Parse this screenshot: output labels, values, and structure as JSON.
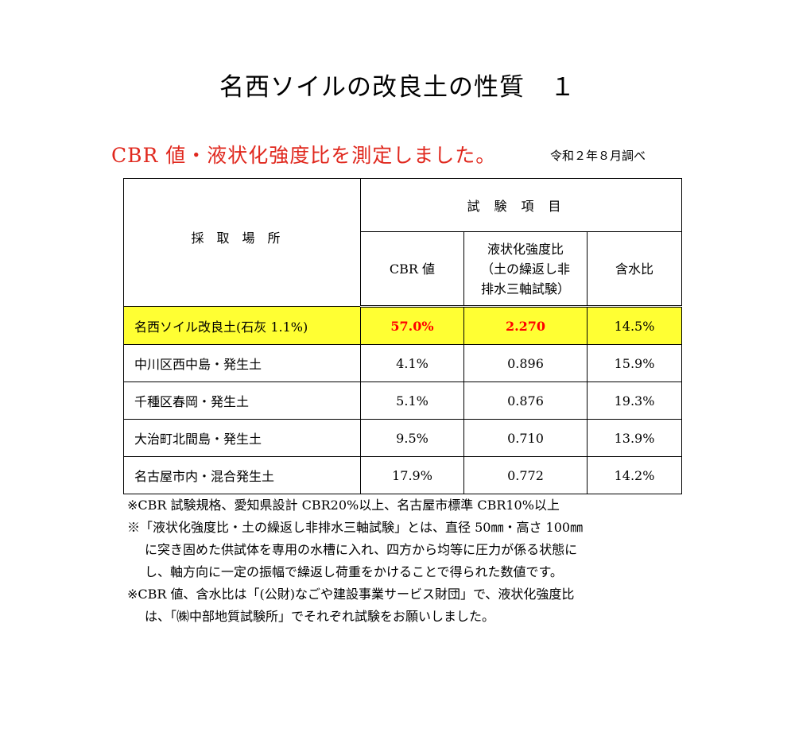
{
  "title": "名西ソイルの改良土の性質　１",
  "subtitle": "CBR 値・液状化強度比を測定しました。",
  "date": "令和２年８月調べ",
  "table": {
    "location_header": "採取場所",
    "group_header": "試験項目",
    "col_cbr": "CBR 値",
    "col_liq_1": "液状化強度比",
    "col_liq_2": "（土の繰返し非",
    "col_liq_3": "排水三軸試験）",
    "col_water": "含水比",
    "rows": [
      {
        "location": "名西ソイル改良土(石灰 1.1%)",
        "cbr": "57.0%",
        "liq": "2.270",
        "water": "14.5%"
      },
      {
        "location": "中川区西中島・発生土",
        "cbr": "4.1%",
        "liq": "0.896",
        "water": "15.9%"
      },
      {
        "location": "千種区春岡・発生土",
        "cbr": "5.1%",
        "liq": "0.876",
        "water": "19.3%"
      },
      {
        "location": "大治町北間島・発生土",
        "cbr": "9.5%",
        "liq": "0.710",
        "water": "13.9%"
      },
      {
        "location": "名古屋市内・混合発生土",
        "cbr": "17.9%",
        "liq": "0.772",
        "water": "14.2%"
      }
    ]
  },
  "notes": {
    "n1": "※CBR 試験規格、愛知県設計 CBR20%以上、名古屋市標準 CBR10%以上",
    "n2_1": "※「液状化強度比・土の繰返し非排水三軸試験」とは、直径 50㎜・高さ 100㎜",
    "n2_2": "に突き固めた供試体を専用の水槽に入れ、四方から均等に圧力が係る状態に",
    "n2_3": "し、軸方向に一定の振幅で繰返し荷重をかけることで得られた数値です。",
    "n3_1": "※CBR 値、含水比は「(公財)なごや建設事業サービス財団」で、液状化強度比",
    "n3_2": "は、「㈱中部地質試験所」でそれぞれ試験をお願いしました。"
  },
  "colors": {
    "subtitle": "#e0281e",
    "highlight_bg": "#ffff33",
    "highlight_text": "#ff0000"
  }
}
